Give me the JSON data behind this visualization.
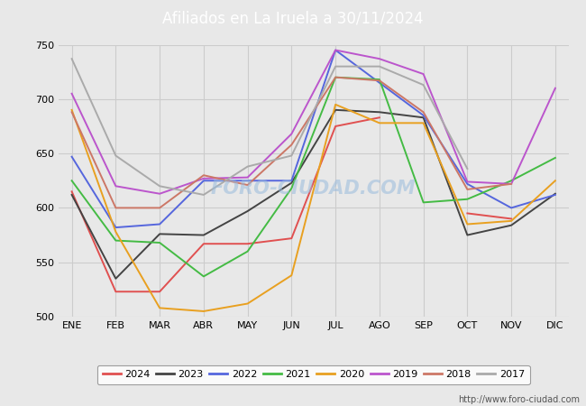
{
  "title": "Afiliados en La Iruela a 30/11/2024",
  "title_bg_color": "#4f86c6",
  "title_text_color": "#ffffff",
  "ylim": [
    500,
    750
  ],
  "yticks": [
    500,
    550,
    600,
    650,
    700,
    750
  ],
  "months": [
    "ENE",
    "FEB",
    "MAR",
    "ABR",
    "MAY",
    "JUN",
    "JUL",
    "AGO",
    "SEP",
    "OCT",
    "NOV",
    "DIC"
  ],
  "watermark": "FORO-CIUDAD.COM",
  "url": "http://www.foro-ciudad.com",
  "series": {
    "2024": {
      "color": "#e05050",
      "data": [
        615,
        523,
        523,
        567,
        567,
        572,
        675,
        683,
        null,
        595,
        590,
        null
      ]
    },
    "2023": {
      "color": "#444444",
      "data": [
        612,
        535,
        576,
        575,
        597,
        623,
        690,
        688,
        683,
        575,
        584,
        613
      ]
    },
    "2022": {
      "color": "#5566dd",
      "data": [
        647,
        582,
        585,
        625,
        625,
        625,
        745,
        715,
        685,
        622,
        600,
        612
      ]
    },
    "2021": {
      "color": "#44bb44",
      "data": [
        625,
        570,
        568,
        537,
        560,
        618,
        720,
        718,
        605,
        608,
        625,
        646
      ]
    },
    "2020": {
      "color": "#e8a020",
      "data": [
        690,
        578,
        508,
        505,
        512,
        538,
        695,
        678,
        678,
        585,
        588,
        625
      ]
    },
    "2019": {
      "color": "#bb55cc",
      "data": [
        705,
        620,
        613,
        627,
        628,
        668,
        745,
        737,
        723,
        624,
        622,
        710
      ]
    },
    "2018": {
      "color": "#cc7766",
      "data": [
        688,
        600,
        600,
        630,
        621,
        658,
        720,
        717,
        688,
        617,
        622,
        null
      ]
    },
    "2017": {
      "color": "#aaaaaa",
      "data": [
        737,
        648,
        620,
        612,
        638,
        648,
        730,
        730,
        713,
        636,
        null,
        null
      ]
    }
  },
  "legend_order": [
    "2024",
    "2023",
    "2022",
    "2021",
    "2020",
    "2019",
    "2018",
    "2017"
  ],
  "bg_color": "#e8e8e8",
  "plot_bg_color": "#e8e8e8",
  "grid_color": "#cccccc"
}
